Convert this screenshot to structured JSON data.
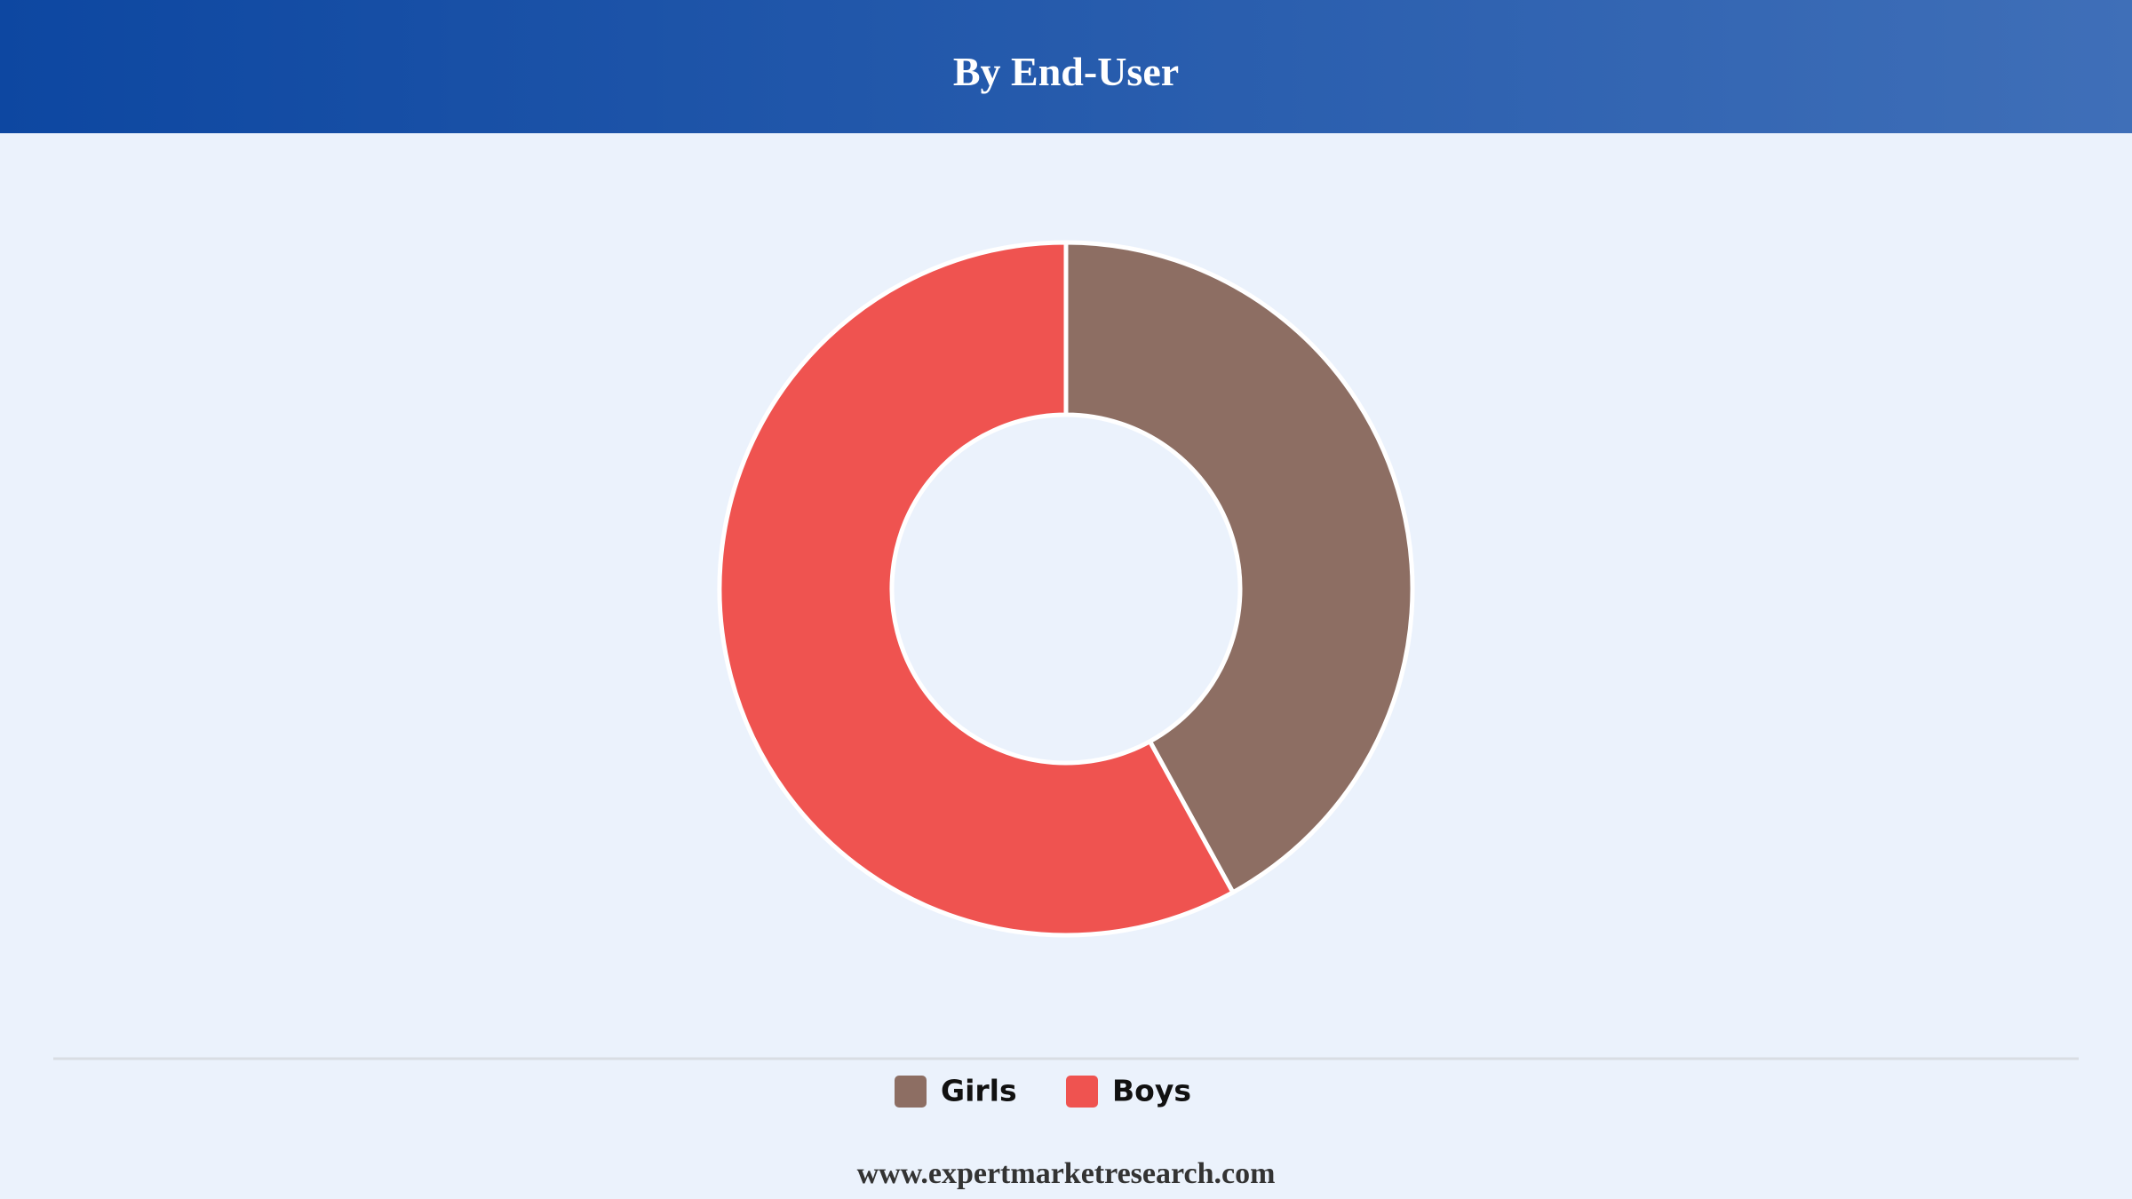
{
  "chart_data": {
    "type": "pie",
    "title": "By End-User",
    "categories": [
      "Girls",
      "Boys"
    ],
    "values": [
      42,
      58
    ],
    "colors": [
      "#8d6e63",
      "#ef5350"
    ],
    "source": "www.expertmarketresearch.com"
  }
}
